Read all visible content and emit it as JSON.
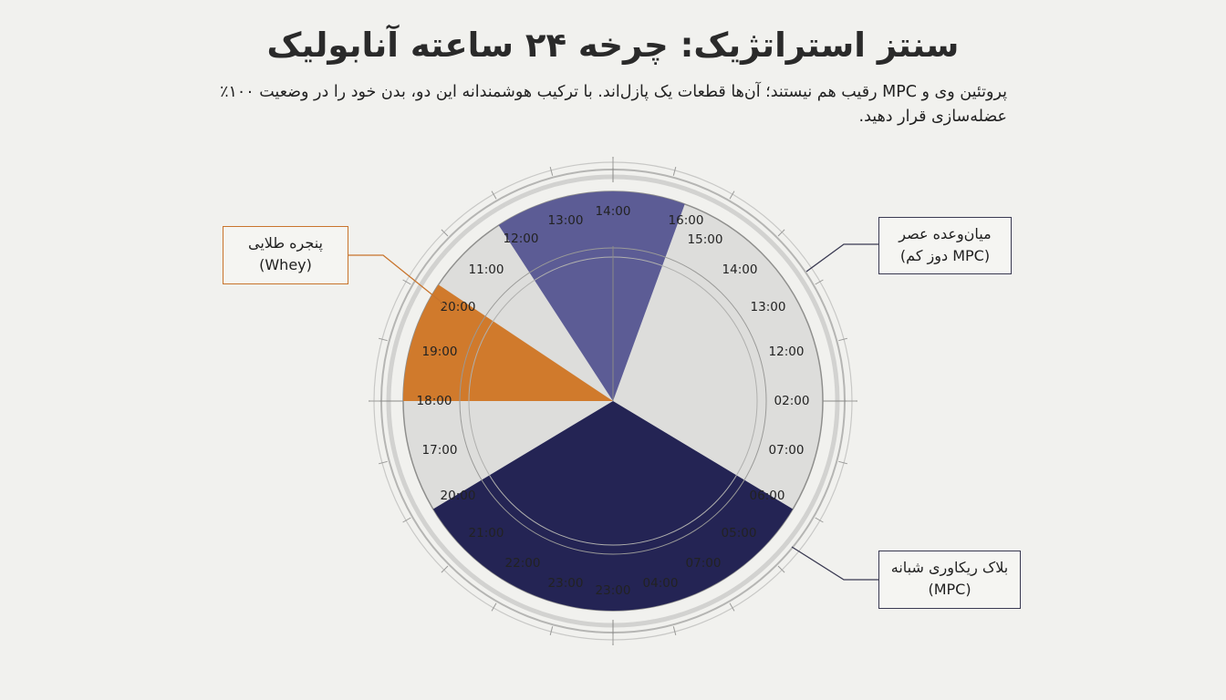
{
  "header": {
    "title": "سنتز استراتژیک: چرخه ۲۴ ساعته آنابولیک",
    "subtitle": "پروتئین وی و MPC رقیب هم نیستند؛ آن‌ها قطعات یک پازل‌اند. با ترکیب هوشمندانه این دو، بدن خود را در وضعیت ۱۰۰٪ عضله‌سازی قرار دهید."
  },
  "callouts": {
    "golden_window": {
      "line1": "پنجره طلایی",
      "line2": "(Whey)"
    },
    "afternoon_snack": {
      "line1": "میان‌وعده عصر",
      "line2": "(MPC دوز کم)"
    },
    "night_recovery": {
      "line1": "بلاک ریکاوری شبانه",
      "line2": "(MPC)"
    }
  },
  "colors": {
    "whey": "#d07a2c",
    "mpc_snack": "#5c5c95",
    "mpc_night": "#242454",
    "dial": "#dddddb"
  },
  "hour_labels": [
    "14:00",
    "16:00",
    "15:00",
    "14:00",
    "13:00",
    "12:00",
    "02:00",
    "07:00",
    "06:00",
    "05:00",
    "07:00",
    "04:00",
    "23:00",
    "23:00",
    "22:00",
    "21:00",
    "20:00",
    "17:00",
    "18:00",
    "19:00",
    "20:00",
    "11:00",
    "12:00",
    "13:00"
  ],
  "chart_data": {
    "type": "pie",
    "segments": [
      {
        "name": "پنجره طلایی (Whey)",
        "start_deg": 270,
        "end_deg": 303.7,
        "color": "#d07a2c"
      },
      {
        "name": "میان‌وعده عصر (MPC دوز کم)",
        "start_deg": 327,
        "end_deg": 20,
        "color": "#5c5c95"
      },
      {
        "name": "بلاک ریکاوری شبانه (MPC)",
        "start_deg": 121,
        "end_deg": 239,
        "color": "#242454"
      }
    ]
  }
}
